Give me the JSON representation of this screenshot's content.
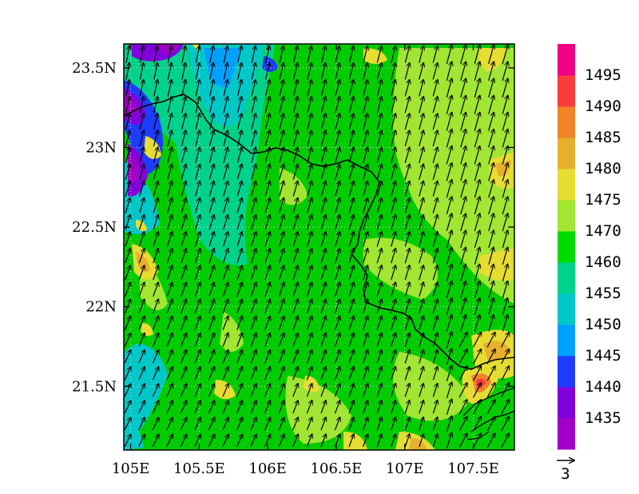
{
  "map": {
    "lon_range": [
      104.95,
      107.8
    ],
    "lat_range": [
      21.1,
      23.65
    ],
    "lon_ticks": [
      {
        "value": 105.0,
        "label": "105E"
      },
      {
        "value": 105.5,
        "label": "105.5E"
      },
      {
        "value": 106.0,
        "label": "106E"
      },
      {
        "value": 106.5,
        "label": "106.5E"
      },
      {
        "value": 107.0,
        "label": "107E"
      },
      {
        "value": 107.5,
        "label": "107.5E"
      }
    ],
    "lat_ticks": [
      {
        "value": 21.5,
        "label": "21.5N"
      },
      {
        "value": 22.0,
        "label": "22N"
      },
      {
        "value": 22.5,
        "label": "22.5N"
      },
      {
        "value": 23.0,
        "label": "23N"
      },
      {
        "value": 23.5,
        "label": "23.5N"
      }
    ],
    "gridlines": true,
    "field_type": "filled contour with wind vectors",
    "background_level_color": "#00cc00"
  },
  "colorbar": {
    "levels": [
      {
        "label": "1435",
        "color": "#a000c8"
      },
      {
        "label": "1440",
        "color": "#8200dc"
      },
      {
        "label": "1445",
        "color": "#1e3cff"
      },
      {
        "label": "1450",
        "color": "#00a0ff"
      },
      {
        "label": "1455",
        "color": "#00c8c8"
      },
      {
        "label": "1460",
        "color": "#00d28c"
      },
      {
        "label": "1470",
        "color": "#00dc00"
      },
      {
        "label": "1475",
        "color": "#a0e632"
      },
      {
        "label": "1480",
        "color": "#e6dc32"
      },
      {
        "label": "1485",
        "color": "#e6af2d"
      },
      {
        "label": "1490",
        "color": "#f08228"
      },
      {
        "label": "1495",
        "color": "#fa3c3c"
      },
      {
        "label": "",
        "color": "#f00082"
      }
    ]
  },
  "vector_reference": {
    "label": "3"
  }
}
